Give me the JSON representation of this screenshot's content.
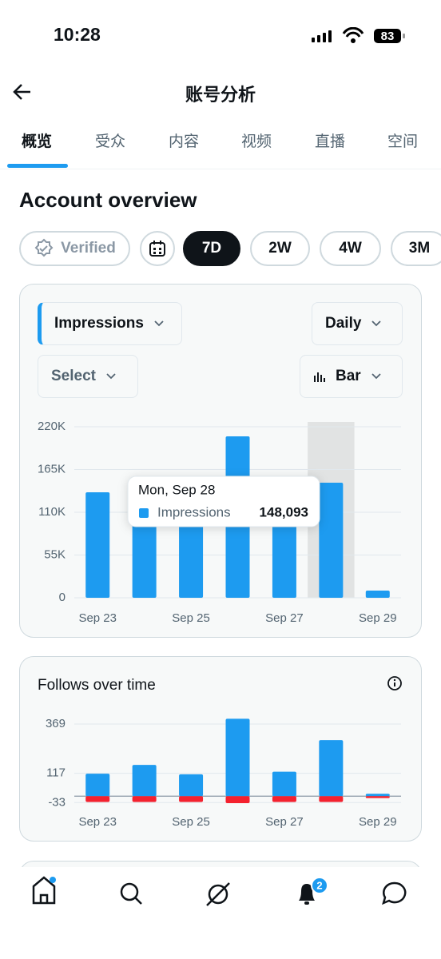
{
  "status_bar": {
    "time": "10:28",
    "battery": "83"
  },
  "header": {
    "title": "账号分析"
  },
  "tabs": {
    "items": [
      "概览",
      "受众",
      "内容",
      "视频",
      "直播",
      "空间"
    ],
    "active": 0
  },
  "section_title": "Account overview",
  "filters": {
    "verified": "Verified",
    "periods": [
      "7D",
      "2W",
      "4W",
      "3M"
    ],
    "active": 0
  },
  "chart_data": [
    {
      "type": "bar",
      "metric": "Impressions",
      "interval": "Daily",
      "selector": "Select",
      "chart_style": "Bar",
      "categories": [
        "Sep 23",
        null,
        "Sep 25",
        null,
        "Sep 27",
        null,
        "Sep 29"
      ],
      "values": [
        135700,
        121000,
        118000,
        207700,
        150000,
        148093,
        9300
      ],
      "color": "#1d9bf0",
      "ylim": [
        0,
        220000
      ],
      "yticks": [
        0,
        {
          "value": 55000,
          "label": "55K"
        },
        {
          "value": 110000,
          "label": "110K"
        },
        {
          "value": 165000,
          "label": "165K"
        },
        {
          "value": 220000,
          "label": "220K"
        }
      ],
      "grid": true,
      "tooltip": {
        "index": 5,
        "title": "Mon, Sep 28",
        "value_label": "148,093"
      }
    },
    {
      "type": "bar",
      "stacked": true,
      "title": "Follows over time",
      "categories": [
        "Sep 23",
        null,
        "Sep 25",
        null,
        "Sep 27",
        null,
        "Sep 29"
      ],
      "series": [
        {
          "color": "#1d9bf0",
          "values": [
            115,
            160,
            112,
            396,
            125,
            287,
            12
          ]
        },
        {
          "color": "#f4212e",
          "values": [
            -30,
            -30,
            -30,
            -36,
            -30,
            -30,
            -10
          ]
        }
      ],
      "ylim": [
        -40,
        410
      ],
      "yticks": [
        -33,
        117,
        369
      ],
      "grid": true
    }
  ],
  "nav": {
    "badge": "2"
  }
}
